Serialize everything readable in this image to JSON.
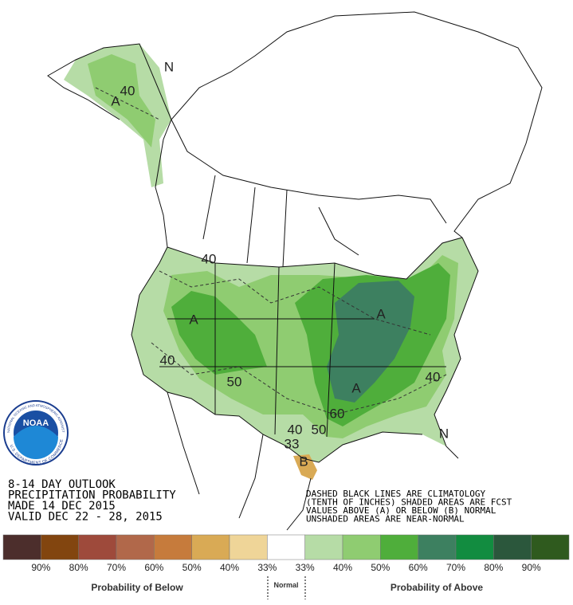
{
  "logo": {
    "text": "NOAA",
    "ring_top": "NATIONAL OCEANIC AND ATMOSPHERIC ADMINISTRATION",
    "ring_bottom": "U.S. DEPARTMENT OF COMMERCE"
  },
  "title_block": {
    "lines": [
      "8-14 DAY OUTLOOK",
      "PRECIPITATION PROBABILITY",
      "MADE  14 DEC 2015",
      "VALID  DEC 22 - 28, 2015"
    ]
  },
  "note": {
    "lines": [
      "DASHED BLACK LINES ARE CLIMATOLOGY",
      "(TENTH OF INCHES) SHADED AREAS ARE FCST",
      "VALUES ABOVE (A) OR BELOW (B) NORMAL",
      "UNSHADED AREAS ARE NEAR-NORMAL"
    ]
  },
  "map_labels": [
    "N",
    "A",
    "40",
    "A",
    "40",
    "40",
    "50",
    "A",
    "A",
    "60",
    "40",
    "50",
    "33",
    "B",
    "40",
    "N"
  ],
  "legend": {
    "colors": [
      "#4c2e2c",
      "#82450f",
      "#9e4a3b",
      "#b1684a",
      "#c67b3c",
      "#d9aa55",
      "#efd598",
      "#ffffff",
      "#b6dca6",
      "#8fcc71",
      "#4fae3b",
      "#3d8060",
      "#128c40",
      "#2b573c",
      "#2f5a1e"
    ],
    "labels": [
      "90%",
      "80%",
      "70%",
      "60%",
      "50%",
      "40%",
      "33%",
      "33%",
      "40%",
      "50%",
      "60%",
      "70%",
      "80%",
      "90%"
    ],
    "below_label": "Probability of Below",
    "normal_label": "Normal",
    "above_label": "Probability of Above"
  }
}
